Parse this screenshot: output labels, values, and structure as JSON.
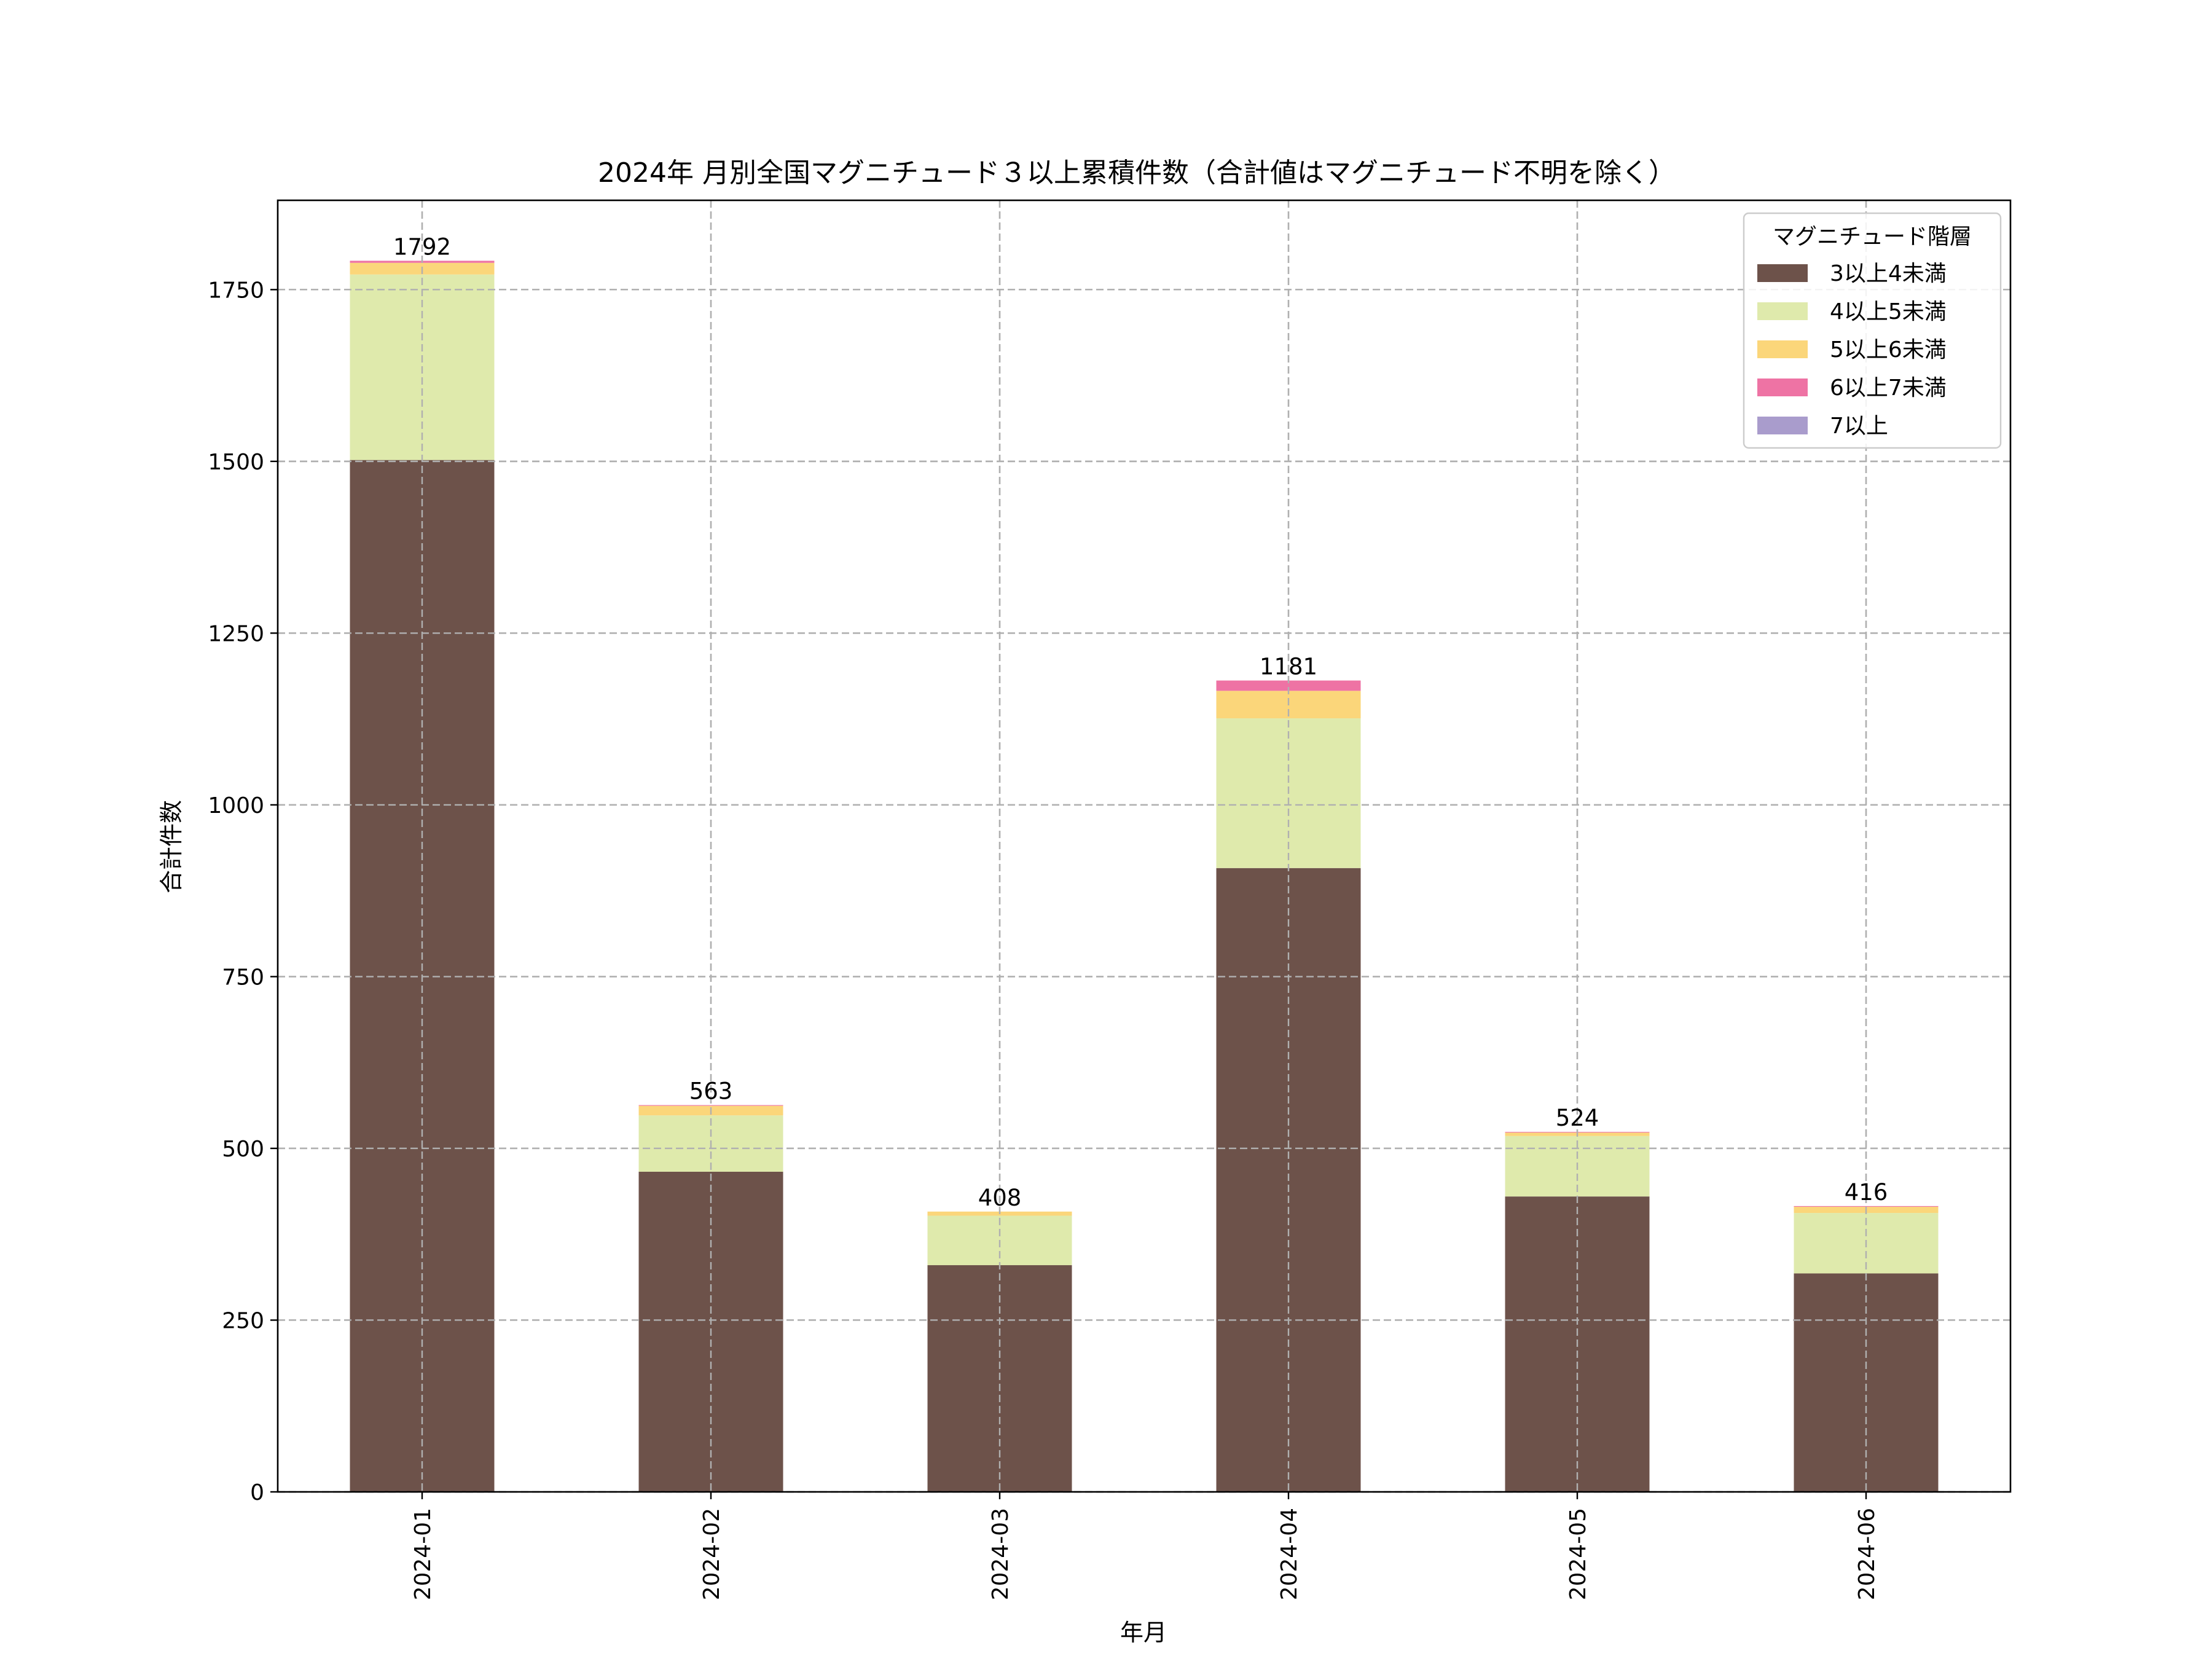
{
  "chart_data": {
    "type": "bar",
    "stacked": true,
    "title": "2024年 月別全国マグニチュード３以上累積件数（合計値はマグニチュード不明を除く）",
    "xlabel": "年月",
    "ylabel": "合計件数",
    "categories": [
      "2024-01",
      "2024-02",
      "2024-03",
      "2024-04",
      "2024-05",
      "2024-06"
    ],
    "series": [
      {
        "name": "3以上4未満",
        "color": "#6d524a",
        "values": [
          1502,
          466,
          330,
          908,
          430,
          318
        ]
      },
      {
        "name": "4以上5未満",
        "color": "#dfeaac",
        "values": [
          270,
          82,
          72,
          218,
          88,
          88
        ]
      },
      {
        "name": "5以上6未満",
        "color": "#fbd67a",
        "values": [
          17,
          14,
          6,
          40,
          5,
          9
        ]
      },
      {
        "name": "6以上7未満",
        "color": "#ee73a4",
        "values": [
          3,
          1,
          0,
          15,
          1,
          1
        ]
      },
      {
        "name": "7以上",
        "color": "#a99ccc",
        "values": [
          0,
          0,
          0,
          0,
          0,
          0
        ]
      }
    ],
    "totals": [
      "1792",
      "563",
      "408",
      "1181",
      "524",
      "416"
    ],
    "ylim": [
      0,
      1880
    ],
    "yticks": [
      0,
      250,
      500,
      750,
      1000,
      1250,
      1500,
      1750
    ],
    "grid": true,
    "legend": {
      "title": "マグニチュード階層",
      "placement": "top-right"
    }
  }
}
